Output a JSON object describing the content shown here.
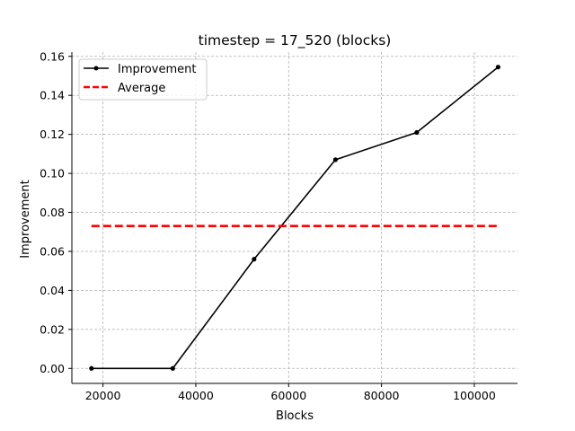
{
  "chart_data": {
    "type": "line",
    "title": "timestep = 17_520 (blocks)",
    "xlabel": "Blocks",
    "ylabel": "Improvement",
    "xlim": [
      13300,
      109300
    ],
    "ylim": [
      -0.0077,
      0.1622
    ],
    "xticks": [
      20000,
      40000,
      60000,
      80000,
      100000
    ],
    "xtick_labels": [
      "20000",
      "40000",
      "60000",
      "80000",
      "100000"
    ],
    "yticks": [
      0.0,
      0.02,
      0.04,
      0.06,
      0.08,
      0.1,
      0.12,
      0.14,
      0.16
    ],
    "ytick_labels": [
      "0.00",
      "0.02",
      "0.04",
      "0.06",
      "0.08",
      "0.10",
      "0.12",
      "0.14",
      "0.16"
    ],
    "grid": true,
    "legend_position": "top-left",
    "series": [
      {
        "name": "Improvement",
        "color": "#000000",
        "style": "solid",
        "marker": "dot",
        "x": [
          17520,
          35040,
          52560,
          70080,
          87600,
          105120
        ],
        "y": [
          0.0,
          0.0,
          0.056,
          0.107,
          0.121,
          0.1545
        ]
      },
      {
        "name": "Average",
        "color": "#ff0000",
        "style": "dashed",
        "marker": "none",
        "x": [
          17520,
          105120
        ],
        "y": [
          0.073,
          0.073
        ]
      }
    ]
  }
}
